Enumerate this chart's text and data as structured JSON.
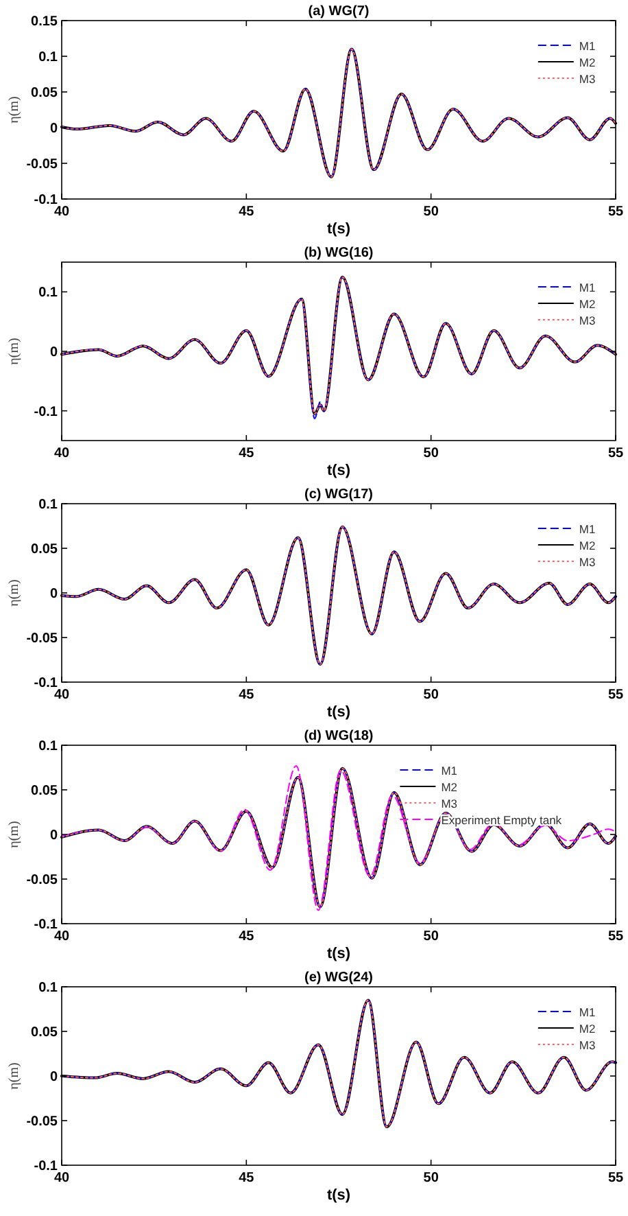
{
  "chart_data": [
    {
      "type": "line",
      "title": "(a) WG(7)",
      "xlabel": "t(s)",
      "ylabel": "η(m)",
      "xlim": [
        40,
        55
      ],
      "xticks": [
        40,
        45,
        50,
        55
      ],
      "ylim": [
        -0.1,
        0.15
      ],
      "yticks": [
        -0.1,
        -0.05,
        0,
        0.05,
        0.1,
        0.15
      ],
      "legend": "top right",
      "x": [
        40,
        40.4,
        41.3,
        42.0,
        42.6,
        43.3,
        43.9,
        44.6,
        45.2,
        46.0,
        46.6,
        47.3,
        47.85,
        48.45,
        49.2,
        49.9,
        50.6,
        51.4,
        52.1,
        52.9,
        53.7,
        54.3,
        54.85,
        55
      ],
      "series": [
        {
          "name": "M1",
          "color": "#0000ff",
          "line_style": "dashed",
          "values": [
            0.001,
            -0.002,
            0.003,
            -0.005,
            0.008,
            -0.01,
            0.013,
            -0.019,
            0.023,
            -0.033,
            0.054,
            -0.069,
            0.11,
            -0.059,
            0.047,
            -0.031,
            0.026,
            -0.019,
            0.013,
            -0.013,
            0.014,
            -0.017,
            0.013,
            0.006
          ]
        },
        {
          "name": "M2",
          "color": "#000000",
          "line_style": "solid",
          "values": [
            0.001,
            -0.002,
            0.003,
            -0.005,
            0.008,
            -0.01,
            0.013,
            -0.019,
            0.023,
            -0.033,
            0.054,
            -0.069,
            0.11,
            -0.059,
            0.047,
            -0.031,
            0.026,
            -0.019,
            0.013,
            -0.013,
            0.014,
            -0.017,
            0.013,
            0.006
          ]
        },
        {
          "name": "M3",
          "color": "#ff6070",
          "line_style": "dotted",
          "values": [
            0.001,
            -0.002,
            0.003,
            -0.005,
            0.008,
            -0.01,
            0.013,
            -0.019,
            0.023,
            -0.033,
            0.054,
            -0.069,
            0.11,
            -0.059,
            0.047,
            -0.031,
            0.026,
            -0.019,
            0.013,
            -0.013,
            0.014,
            -0.017,
            0.013,
            0.006
          ]
        }
      ]
    },
    {
      "type": "line",
      "title": "(b) WG(16)",
      "xlabel": "t(s)",
      "ylabel": "η(m)",
      "xlim": [
        40,
        55
      ],
      "xticks": [
        40,
        45,
        50,
        55
      ],
      "ylim": [
        -0.15,
        0.15
      ],
      "yticks": [
        -0.1,
        0,
        0.1
      ],
      "legend": "top right",
      "x": [
        40,
        41.0,
        41.5,
        42.2,
        42.9,
        43.6,
        44.3,
        45.0,
        45.6,
        46.5,
        46.85,
        47.0,
        47.1,
        47.6,
        48.3,
        49.0,
        49.8,
        50.4,
        51.1,
        51.7,
        52.4,
        53.1,
        53.9,
        54.5,
        55
      ],
      "series": [
        {
          "name": "M1",
          "color": "#0000ff",
          "line_style": "dashed",
          "values": [
            -0.005,
            0.003,
            -0.008,
            0.009,
            -0.012,
            0.02,
            -0.02,
            0.035,
            -0.042,
            0.088,
            -0.113,
            -0.085,
            -0.1,
            0.125,
            -0.048,
            0.063,
            -0.043,
            0.047,
            -0.038,
            0.035,
            -0.028,
            0.026,
            -0.018,
            0.01,
            -0.005
          ]
        },
        {
          "name": "M2",
          "color": "#000000",
          "line_style": "solid",
          "values": [
            -0.005,
            0.003,
            -0.008,
            0.009,
            -0.012,
            0.02,
            -0.02,
            0.035,
            -0.042,
            0.088,
            -0.105,
            -0.09,
            -0.1,
            0.125,
            -0.048,
            0.063,
            -0.043,
            0.047,
            -0.038,
            0.035,
            -0.028,
            0.026,
            -0.018,
            0.01,
            -0.005
          ]
        },
        {
          "name": "M3",
          "color": "#ff6070",
          "line_style": "dotted",
          "values": [
            -0.005,
            0.003,
            -0.008,
            0.009,
            -0.012,
            0.02,
            -0.02,
            0.035,
            -0.042,
            0.088,
            -0.105,
            -0.09,
            -0.1,
            0.125,
            -0.048,
            0.063,
            -0.043,
            0.047,
            -0.038,
            0.035,
            -0.028,
            0.026,
            -0.018,
            0.01,
            -0.005
          ]
        }
      ]
    },
    {
      "type": "line",
      "title": "(c) WG(17)",
      "xlabel": "t(s)",
      "ylabel": "η(m)",
      "xlim": [
        40,
        55
      ],
      "xticks": [
        40,
        45,
        50,
        55
      ],
      "ylim": [
        -0.1,
        0.1
      ],
      "yticks": [
        -0.1,
        -0.05,
        0,
        0.05,
        0.1
      ],
      "legend": "top right",
      "x": [
        40,
        40.4,
        41.0,
        41.7,
        42.3,
        42.9,
        43.6,
        44.2,
        45.0,
        45.6,
        46.4,
        47.0,
        47.6,
        48.4,
        49.0,
        49.7,
        50.4,
        51.0,
        51.7,
        52.4,
        53.2,
        53.7,
        54.3,
        54.8,
        55
      ],
      "series": [
        {
          "name": "M1",
          "color": "#0000ff",
          "line_style": "dashed",
          "values": [
            -0.003,
            -0.004,
            0.004,
            -0.007,
            0.008,
            -0.011,
            0.015,
            -0.017,
            0.026,
            -0.036,
            0.062,
            -0.08,
            0.074,
            -0.046,
            0.046,
            -0.032,
            0.022,
            -0.017,
            0.01,
            -0.011,
            0.011,
            -0.013,
            0.01,
            -0.011,
            -0.004
          ]
        },
        {
          "name": "M2",
          "color": "#000000",
          "line_style": "solid",
          "values": [
            -0.003,
            -0.004,
            0.004,
            -0.007,
            0.008,
            -0.011,
            0.015,
            -0.017,
            0.026,
            -0.036,
            0.062,
            -0.08,
            0.074,
            -0.046,
            0.046,
            -0.032,
            0.022,
            -0.017,
            0.01,
            -0.011,
            0.011,
            -0.013,
            0.01,
            -0.011,
            -0.004
          ]
        },
        {
          "name": "M3",
          "color": "#ff6070",
          "line_style": "dotted",
          "values": [
            -0.003,
            -0.004,
            0.004,
            -0.007,
            0.008,
            -0.011,
            0.015,
            -0.017,
            0.026,
            -0.036,
            0.062,
            -0.08,
            0.074,
            -0.046,
            0.046,
            -0.032,
            0.022,
            -0.017,
            0.01,
            -0.011,
            0.011,
            -0.013,
            0.01,
            -0.011,
            -0.004
          ]
        }
      ]
    },
    {
      "type": "line",
      "title": "(d) WG(18)",
      "xlabel": "t(s)",
      "ylabel": "η(m)",
      "xlim": [
        40,
        55
      ],
      "xticks": [
        40,
        45,
        50,
        55
      ],
      "ylim": [
        -0.1,
        0.1
      ],
      "yticks": [
        -0.1,
        -0.05,
        0,
        0.05,
        0.1
      ],
      "legend": "top right",
      "x": [
        40,
        41.0,
        41.7,
        42.3,
        43.0,
        43.6,
        44.3,
        45.0,
        45.7,
        46.4,
        47.0,
        47.6,
        48.4,
        49.0,
        49.7,
        50.4,
        51.1,
        51.7,
        52.4,
        53.1,
        53.7,
        54.3,
        54.8,
        55
      ],
      "series": [
        {
          "name": "M1",
          "color": "#0000ff",
          "line_style": "dashed",
          "values": [
            -0.003,
            0.005,
            -0.007,
            0.009,
            -0.01,
            0.015,
            -0.018,
            0.026,
            -0.037,
            0.064,
            -0.081,
            0.074,
            -0.049,
            0.047,
            -0.034,
            0.024,
            -0.019,
            0.011,
            -0.013,
            0.012,
            -0.015,
            0.012,
            -0.01,
            -0.002
          ]
        },
        {
          "name": "M2",
          "color": "#000000",
          "line_style": "solid",
          "values": [
            -0.003,
            0.005,
            -0.007,
            0.009,
            -0.01,
            0.015,
            -0.018,
            0.026,
            -0.037,
            0.064,
            -0.081,
            0.074,
            -0.049,
            0.047,
            -0.034,
            0.024,
            -0.019,
            0.011,
            -0.013,
            0.012,
            -0.015,
            0.012,
            -0.01,
            -0.002
          ]
        },
        {
          "name": "M3",
          "color": "#ff6070",
          "line_style": "dotted",
          "values": [
            -0.003,
            0.005,
            -0.007,
            0.009,
            -0.01,
            0.015,
            -0.018,
            0.026,
            -0.037,
            0.064,
            -0.081,
            0.074,
            -0.049,
            0.047,
            -0.034,
            0.024,
            -0.019,
            0.011,
            -0.013,
            0.012,
            -0.015,
            0.012,
            -0.01,
            -0.002
          ]
        },
        {
          "name": "Experiment Empty tank",
          "color": "#ff00ff",
          "line_style": "dashed",
          "x": [
            40,
            41.0,
            41.7,
            42.3,
            43.0,
            43.6,
            44.3,
            44.95,
            45.65,
            46.35,
            46.95,
            47.55,
            48.35,
            48.95,
            49.7,
            50.4,
            51.05,
            51.7,
            52.35,
            53.1,
            53.7,
            54.4,
            54.8,
            55
          ],
          "values": [
            -0.002,
            0.005,
            -0.007,
            0.008,
            -0.01,
            0.015,
            -0.019,
            0.028,
            -0.04,
            0.077,
            -0.085,
            0.072,
            -0.047,
            0.044,
            -0.032,
            0.024,
            -0.017,
            0.013,
            -0.012,
            0.01,
            -0.007,
            0.0,
            0.006,
            0.003
          ]
        }
      ]
    },
    {
      "type": "line",
      "title": "(e) WG(24)",
      "xlabel": "t(s)",
      "ylabel": "η(m)",
      "xlim": [
        40,
        55
      ],
      "xticks": [
        40,
        45,
        50,
        55
      ],
      "ylim": [
        -0.1,
        0.1
      ],
      "yticks": [
        -0.1,
        -0.05,
        0,
        0.05,
        0.1
      ],
      "legend": "top right",
      "x": [
        40,
        40.9,
        41.5,
        42.2,
        42.9,
        43.6,
        44.3,
        45.0,
        45.6,
        46.2,
        46.95,
        47.6,
        48.3,
        48.8,
        49.6,
        50.2,
        50.9,
        51.6,
        52.2,
        52.9,
        53.6,
        54.2,
        54.9,
        55
      ],
      "series": [
        {
          "name": "M1",
          "color": "#0000ff",
          "line_style": "dashed",
          "values": [
            0.0,
            -0.002,
            0.003,
            -0.003,
            0.005,
            -0.007,
            0.008,
            -0.011,
            0.015,
            -0.019,
            0.035,
            -0.043,
            0.085,
            -0.057,
            0.038,
            -0.031,
            0.021,
            -0.019,
            0.016,
            -0.019,
            0.021,
            -0.016,
            0.016,
            0.015
          ]
        },
        {
          "name": "M2",
          "color": "#000000",
          "line_style": "solid",
          "values": [
            0.0,
            -0.002,
            0.003,
            -0.003,
            0.005,
            -0.007,
            0.008,
            -0.011,
            0.015,
            -0.019,
            0.035,
            -0.043,
            0.085,
            -0.057,
            0.038,
            -0.031,
            0.021,
            -0.019,
            0.016,
            -0.019,
            0.021,
            -0.016,
            0.016,
            0.015
          ]
        },
        {
          "name": "M3",
          "color": "#ff6070",
          "line_style": "dotted",
          "values": [
            0.0,
            -0.002,
            0.003,
            -0.003,
            0.005,
            -0.007,
            0.008,
            -0.011,
            0.015,
            -0.019,
            0.035,
            -0.043,
            0.085,
            -0.057,
            0.038,
            -0.031,
            0.021,
            -0.019,
            0.016,
            -0.019,
            0.021,
            -0.016,
            0.016,
            0.015
          ]
        }
      ]
    }
  ]
}
